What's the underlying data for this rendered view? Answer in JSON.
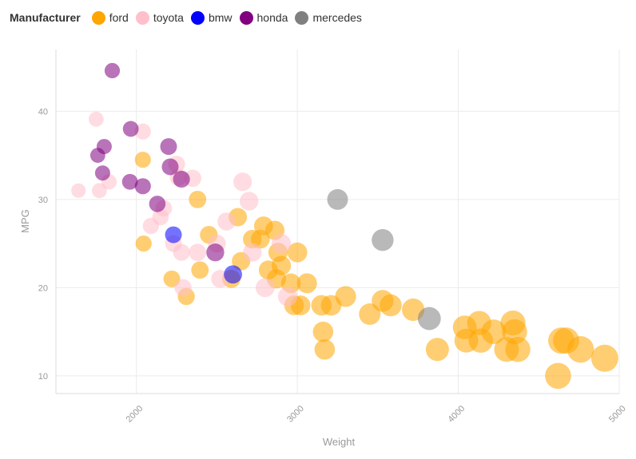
{
  "legend": {
    "title": "Manufacturer",
    "items": [
      {
        "name": "ford",
        "color": "#FFA500"
      },
      {
        "name": "toyota",
        "color": "#FFC0CB"
      },
      {
        "name": "bmw",
        "color": "#0000FF"
      },
      {
        "name": "honda",
        "color": "#800080"
      },
      {
        "name": "mercedes",
        "color": "#808080"
      }
    ]
  },
  "chart_data": {
    "type": "scatter",
    "encoding": "bubble size increases with weight; fill opacity 0.55",
    "xlabel": "Weight",
    "ylabel": "MPG",
    "xlim": [
      1500,
      5000
    ],
    "ylim": [
      8,
      47
    ],
    "xticks": [
      2000,
      3000,
      4000,
      5000
    ],
    "yticks": [
      10,
      20,
      30,
      40
    ],
    "grid": true,
    "legend_position": "top-left",
    "series": [
      {
        "name": "ford",
        "color": "#FFA500",
        "points": [
          [
            2040,
            34.5
          ],
          [
            2045,
            25
          ],
          [
            2220,
            21
          ],
          [
            2310,
            19
          ],
          [
            2380,
            30
          ],
          [
            2395,
            22
          ],
          [
            2450,
            26
          ],
          [
            2590,
            21
          ],
          [
            2630,
            28
          ],
          [
            2650,
            23
          ],
          [
            2720,
            25.5
          ],
          [
            2770,
            25.5
          ],
          [
            2790,
            27
          ],
          [
            2820,
            22
          ],
          [
            2860,
            26.5
          ],
          [
            2870,
            21
          ],
          [
            2880,
            24
          ],
          [
            2900,
            22.5
          ],
          [
            2960,
            20.5
          ],
          [
            2980,
            18
          ],
          [
            3000,
            24
          ],
          [
            3020,
            18
          ],
          [
            3060,
            20.5
          ],
          [
            3150,
            18
          ],
          [
            3160,
            15
          ],
          [
            3170,
            13
          ],
          [
            3210,
            18
          ],
          [
            3300,
            19
          ],
          [
            3450,
            17
          ],
          [
            3530,
            18.5
          ],
          [
            3580,
            18
          ],
          [
            3720,
            17.5
          ],
          [
            3870,
            13
          ],
          [
            4040,
            15.5
          ],
          [
            4050,
            14
          ],
          [
            4130,
            16
          ],
          [
            4140,
            14
          ],
          [
            4220,
            15
          ],
          [
            4300,
            13
          ],
          [
            4340,
            16
          ],
          [
            4350,
            15
          ],
          [
            4370,
            13
          ],
          [
            4620,
            10
          ],
          [
            4640,
            14
          ],
          [
            4670,
            14
          ],
          [
            4760,
            13
          ],
          [
            4910,
            12
          ]
        ]
      },
      {
        "name": "toyota",
        "color": "#FFC0CB",
        "points": [
          [
            1640,
            31
          ],
          [
            1750,
            39.1
          ],
          [
            1770,
            31
          ],
          [
            1830,
            32
          ],
          [
            2040,
            37.7
          ],
          [
            2090,
            27
          ],
          [
            2150,
            28
          ],
          [
            2170,
            29
          ],
          [
            2230,
            25
          ],
          [
            2250,
            34
          ],
          [
            2260,
            32.5
          ],
          [
            2280,
            24
          ],
          [
            2290,
            20
          ],
          [
            2350,
            32.4
          ],
          [
            2380,
            24
          ],
          [
            2500,
            25
          ],
          [
            2520,
            21
          ],
          [
            2560,
            27.5
          ],
          [
            2660,
            32
          ],
          [
            2700,
            29.8
          ],
          [
            2720,
            24
          ],
          [
            2800,
            20
          ],
          [
            2900,
            25
          ],
          [
            2940,
            19
          ]
        ]
      },
      {
        "name": "bmw",
        "color": "#0000FF",
        "points": [
          [
            2230,
            26
          ],
          [
            2600,
            21.5
          ]
        ]
      },
      {
        "name": "honda",
        "color": "#800080",
        "points": [
          [
            1760,
            35
          ],
          [
            1790,
            33
          ],
          [
            1800,
            36
          ],
          [
            1850,
            44.6
          ],
          [
            1960,
            32
          ],
          [
            1965,
            38
          ],
          [
            2040,
            31.5
          ],
          [
            2130,
            29.5
          ],
          [
            2200,
            36
          ],
          [
            2210,
            33.7
          ],
          [
            2280,
            32.3
          ],
          [
            2490,
            24
          ]
        ]
      },
      {
        "name": "mercedes",
        "color": "#808080",
        "points": [
          [
            3250,
            30
          ],
          [
            3530,
            25.4
          ],
          [
            3820,
            16.5
          ]
        ]
      }
    ]
  }
}
